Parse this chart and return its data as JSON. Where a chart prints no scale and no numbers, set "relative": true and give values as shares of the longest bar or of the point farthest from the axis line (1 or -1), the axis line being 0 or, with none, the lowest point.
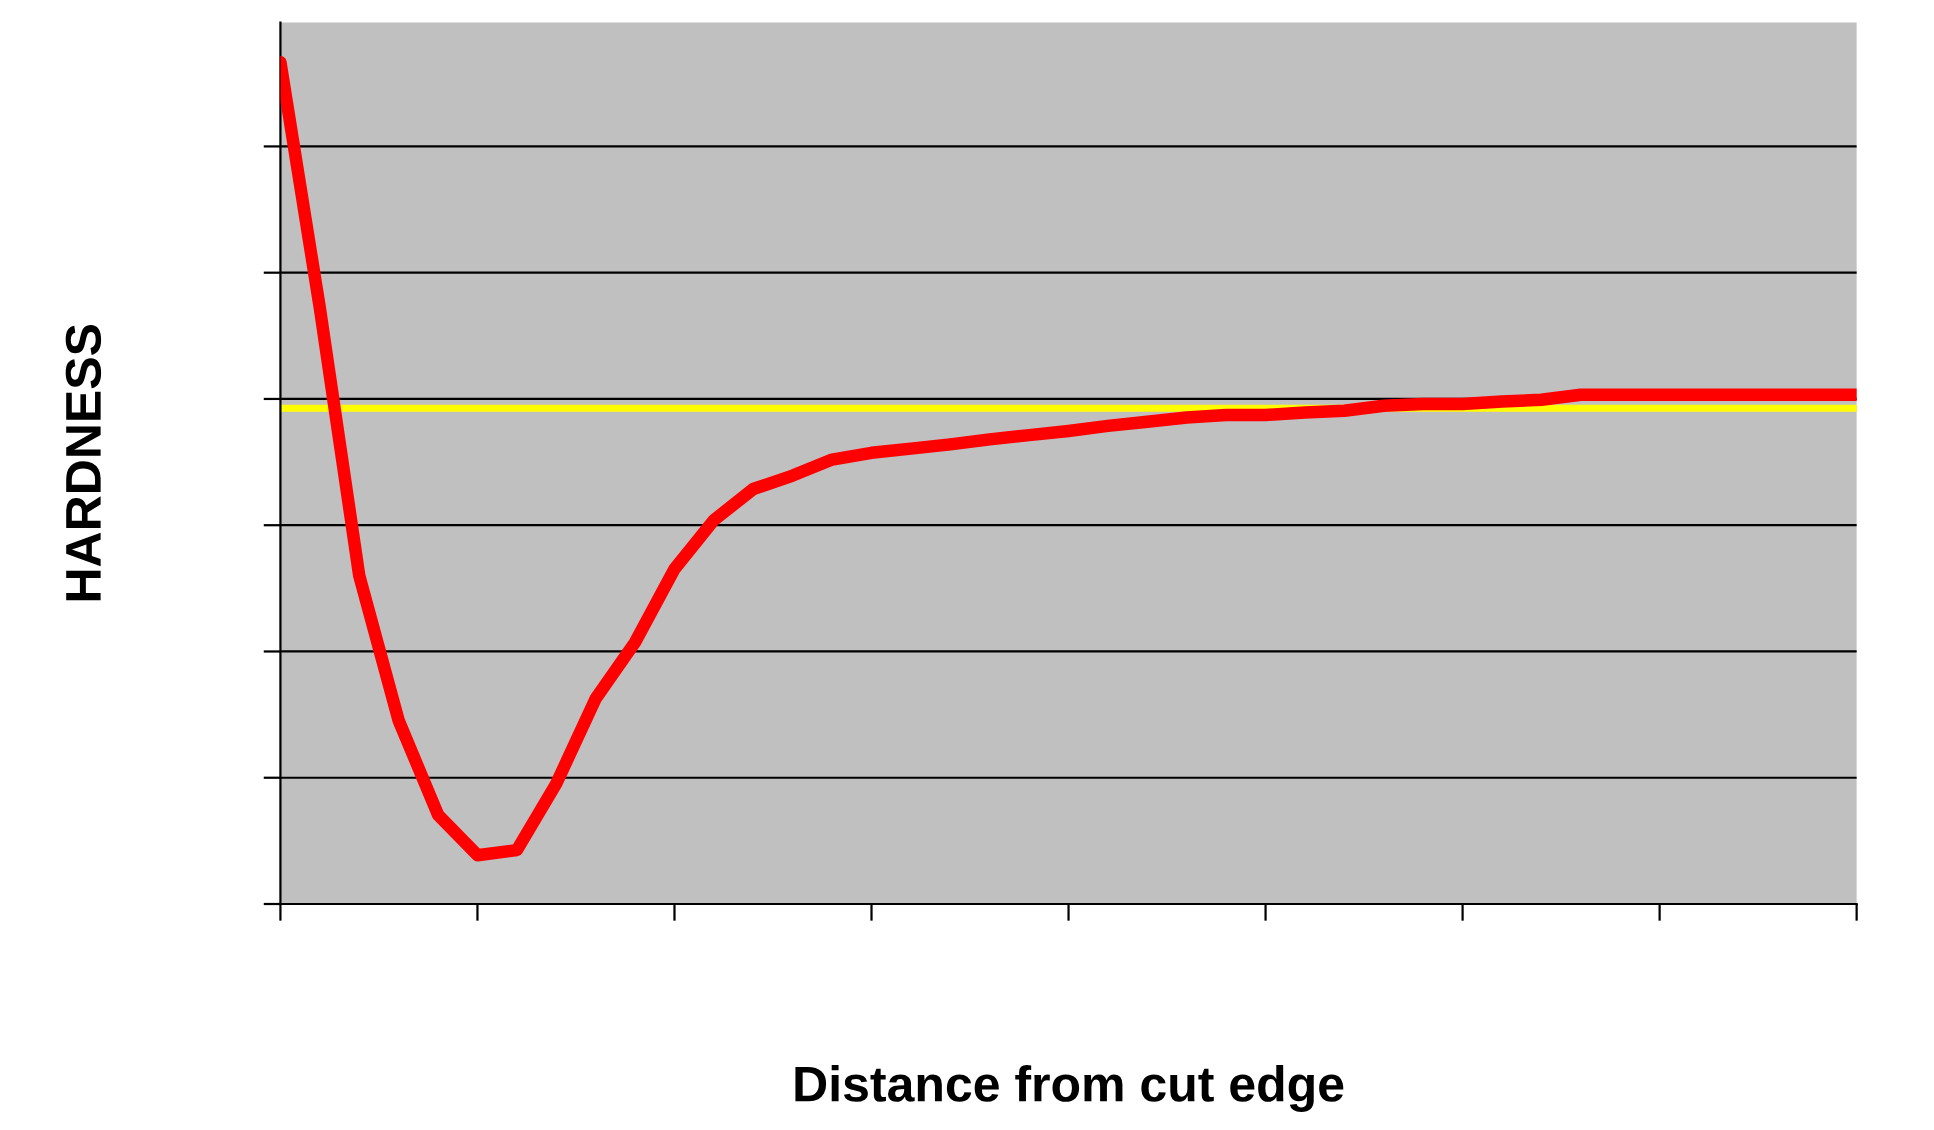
{
  "chart_data": {
    "type": "line",
    "relative": true,
    "xlabel": "Distance from cut edge",
    "ylabel": "HARDNESS",
    "categories": [
      null,
      null,
      null,
      null,
      null,
      null,
      null,
      null,
      null,
      null,
      null,
      null,
      null,
      null,
      null,
      null,
      null,
      null,
      null,
      null,
      null,
      null,
      null,
      null,
      null,
      null,
      null,
      null,
      null,
      null,
      null,
      null,
      null,
      null,
      null,
      null,
      null,
      null,
      null,
      null,
      null
    ],
    "series": [
      {
        "color": "#ff0000",
        "values": [
          1.0,
          0.708,
          0.39,
          0.218,
          0.106,
          0.058,
          0.064,
          0.143,
          0.244,
          0.311,
          0.398,
          0.456,
          0.493,
          0.509,
          0.528,
          0.536,
          0.541,
          0.546,
          0.552,
          0.557,
          0.562,
          0.568,
          0.573,
          0.578,
          0.581,
          0.581,
          0.584,
          0.586,
          0.592,
          0.594,
          0.594,
          0.597,
          0.599,
          0.605,
          0.605,
          0.605,
          0.605,
          0.605,
          0.605,
          0.605,
          0.605
        ]
      }
    ],
    "ref_lines": [
      {
        "axis": "y",
        "value": 0.589,
        "color": "#ffff00"
      }
    ],
    "grid": "y",
    "tick_labels": false,
    "legend": false,
    "marker": "none",
    "line_style": "solid"
  }
}
